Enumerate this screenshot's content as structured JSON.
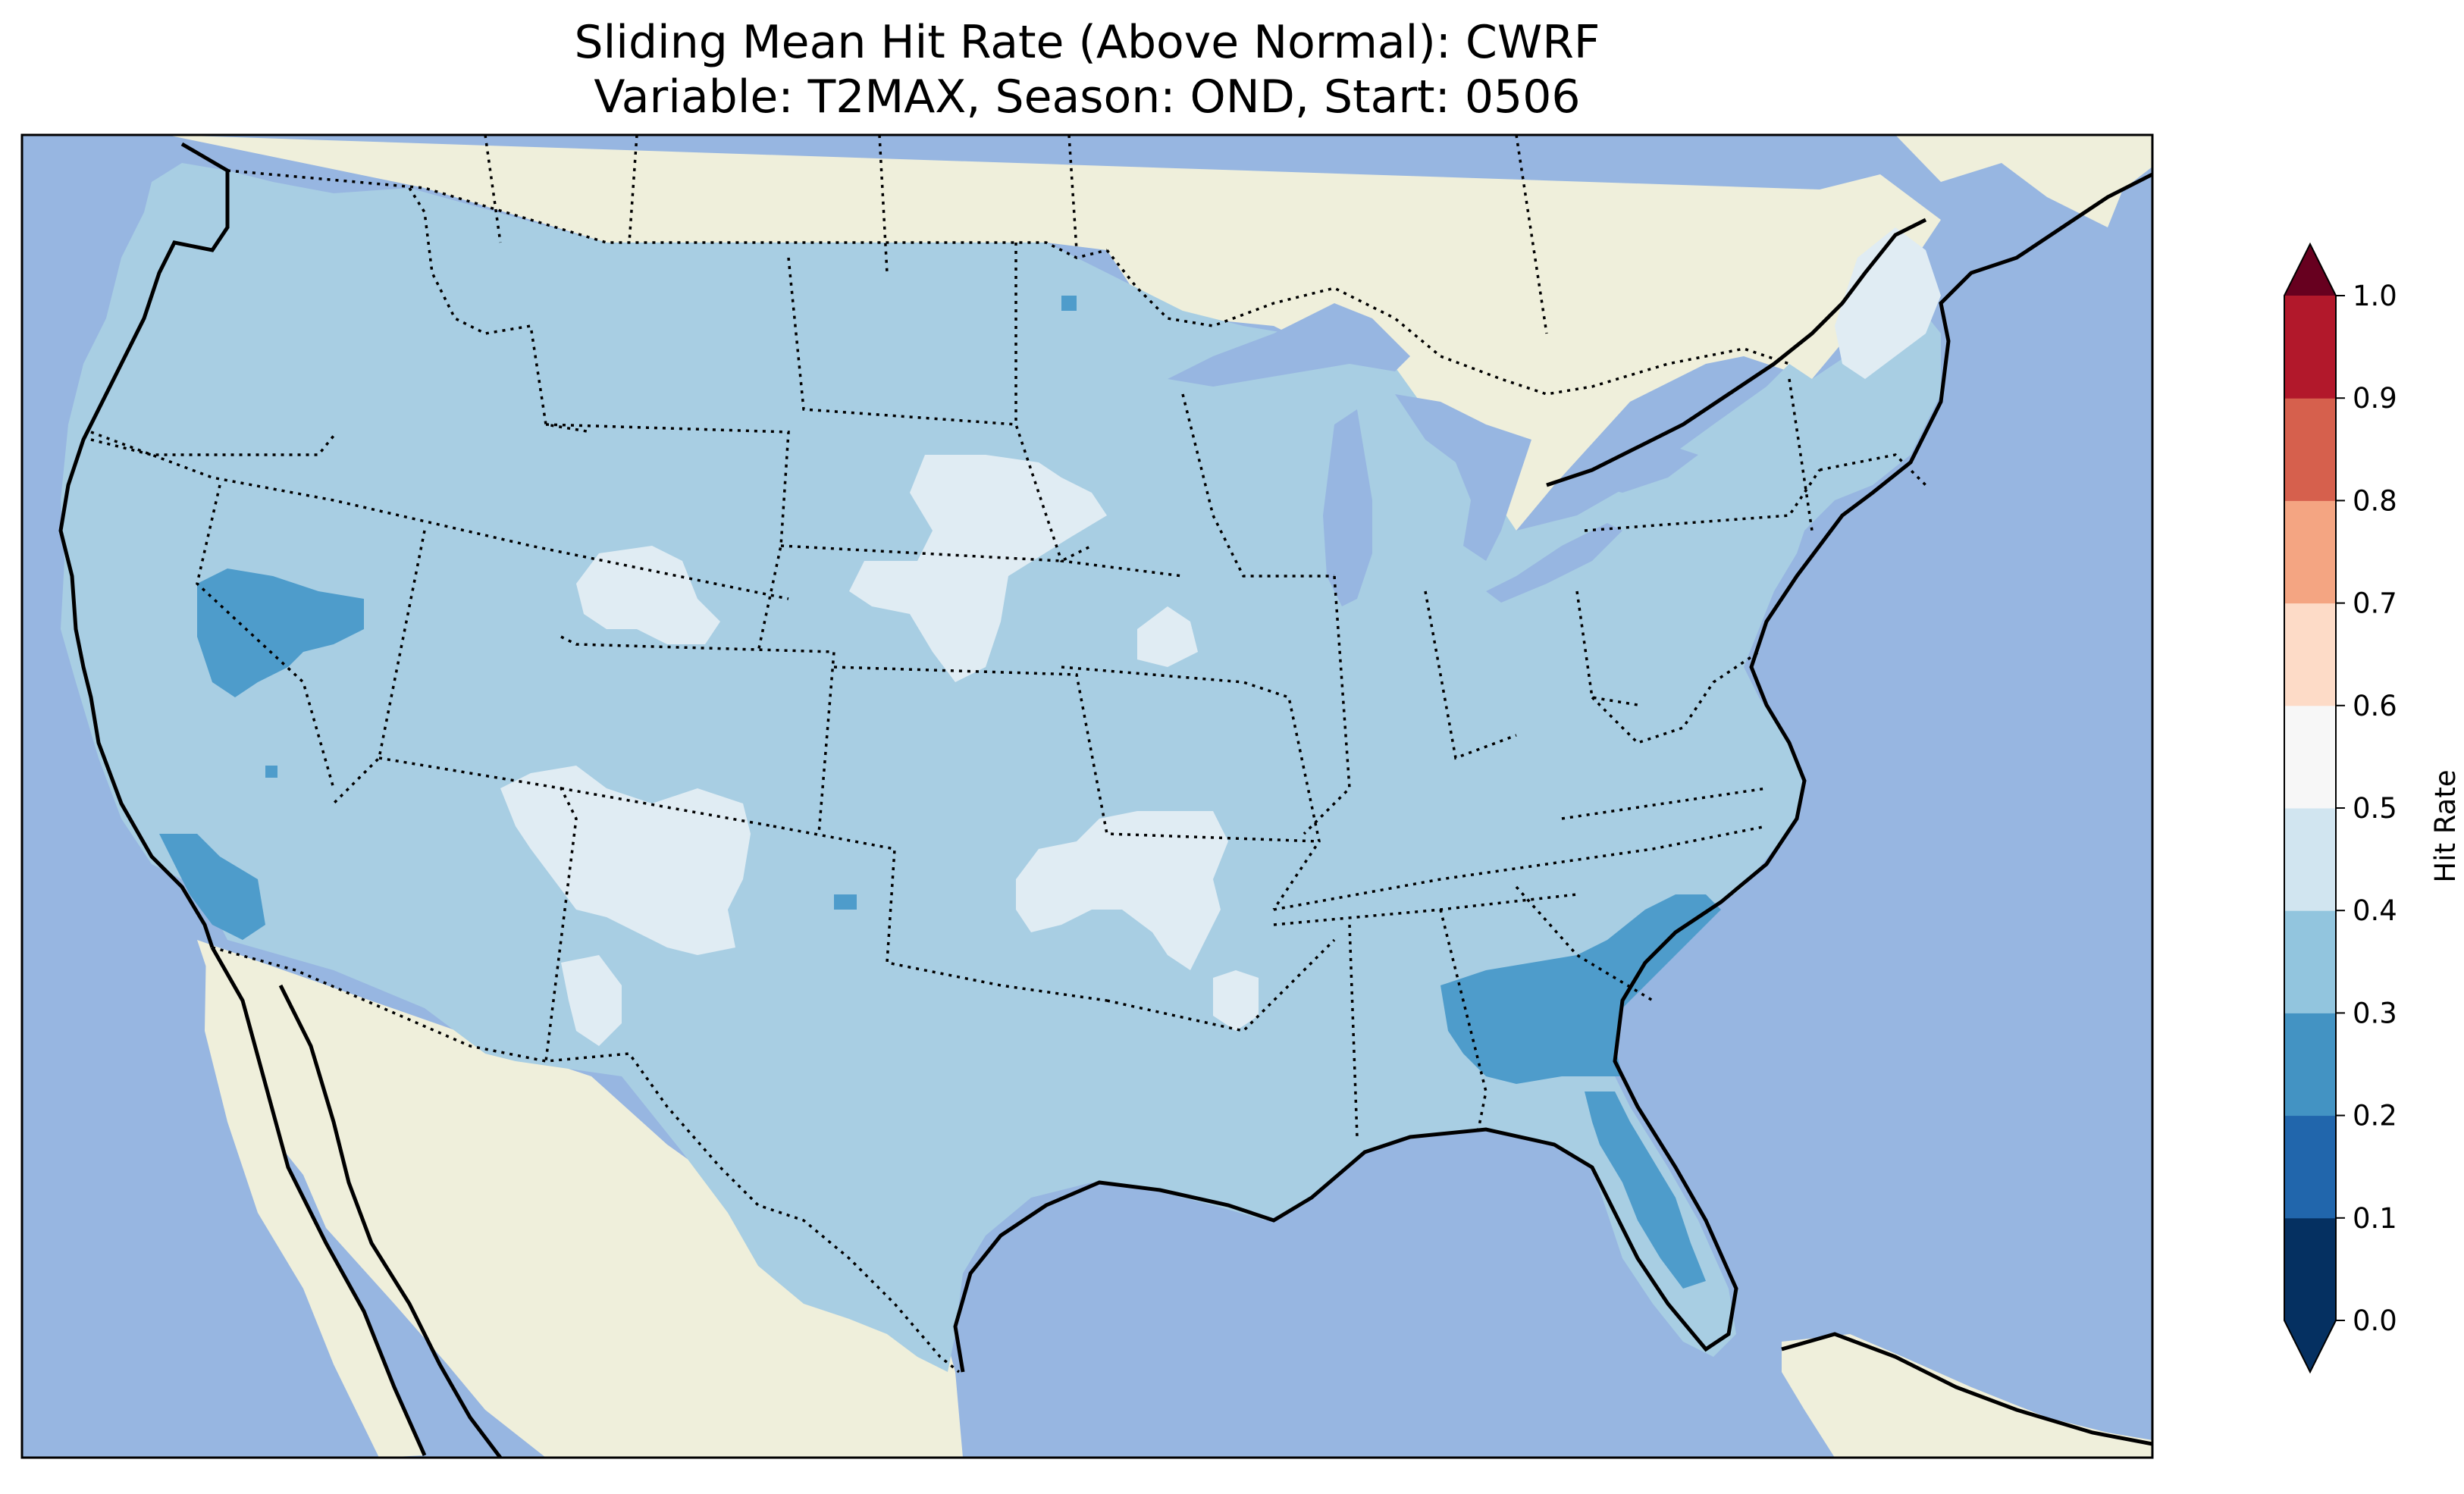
{
  "title": {
    "line1": "Sliding Mean Hit Rate (Above Normal): CWRF",
    "line2": "Variable: T2MAX, Season: OND, Start: 0506"
  },
  "colorbar": {
    "label": "Hit Rate",
    "ticks": [
      "0.0",
      "0.1",
      "0.2",
      "0.3",
      "0.4",
      "0.5",
      "0.6",
      "0.7",
      "0.8",
      "0.9",
      "1.0"
    ],
    "colors": [
      "#053061",
      "#2166ac",
      "#4393c3",
      "#92c5de",
      "#d1e5f0",
      "#f7f7f7",
      "#fddbc7",
      "#f4a582",
      "#d6604d",
      "#b2182b",
      "#67001f"
    ],
    "under_color": "#053061",
    "over_color": "#67001f"
  },
  "map": {
    "ocean_color": "#97b6e1",
    "land_color": "#efefdb",
    "field_colors": {
      "0.2-0.3": "#4e9ccb",
      "0.3-0.4": "#a8cee3",
      "0.4-0.5": "#e0ecf3"
    },
    "dominant_range": "0.3-0.4"
  }
}
